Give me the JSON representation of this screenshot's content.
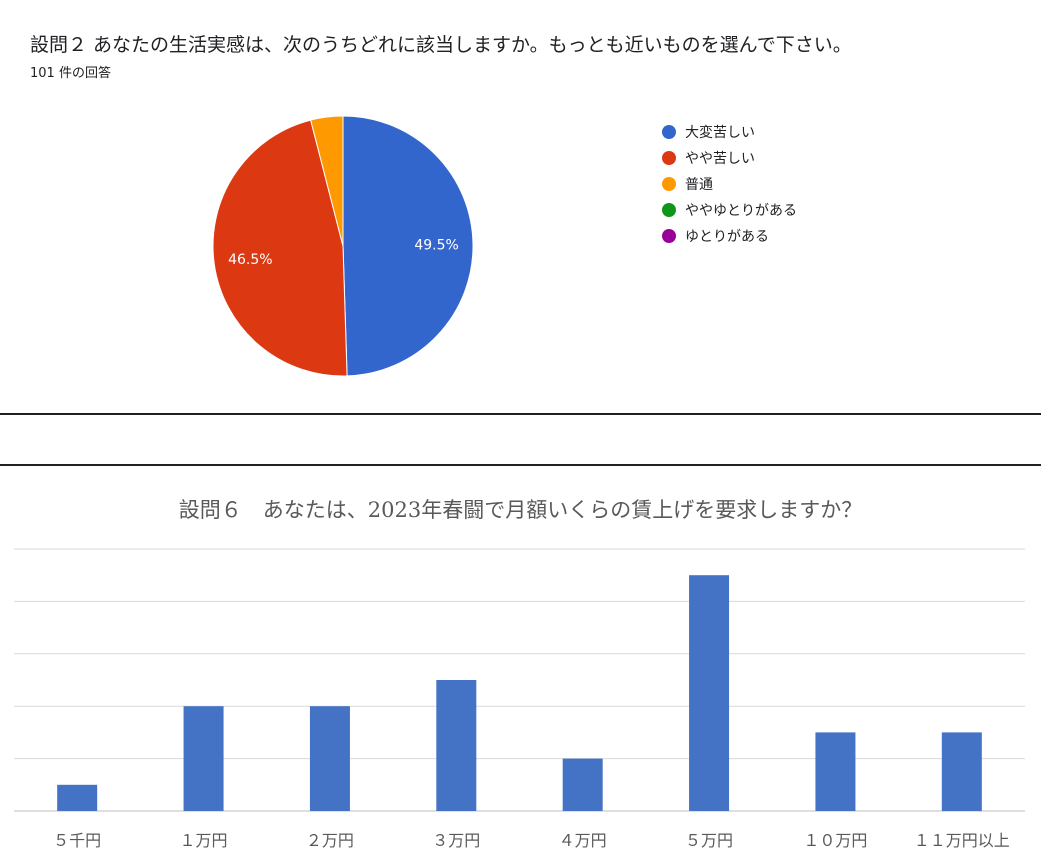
{
  "chart_data": [
    {
      "type": "pie",
      "title": "設問２ あなたの生活実感は、次のうちどれに該当しますか。もっとも近いものを選んで下さい。",
      "subtitle": "101 件の回答",
      "legend_position": "right",
      "series": [
        {
          "name": "大変苦しい",
          "percent": 49.5,
          "color": "#3366cc",
          "label": "49.5%"
        },
        {
          "name": "やや苦しい",
          "percent": 46.5,
          "color": "#dc3912",
          "label": "46.5%"
        },
        {
          "name": "普通",
          "percent": 4.0,
          "color": "#ff9900",
          "label": ""
        },
        {
          "name": "ややゆとりがある",
          "percent": 0,
          "color": "#109618",
          "label": ""
        },
        {
          "name": "ゆとりがある",
          "percent": 0,
          "color": "#990099",
          "label": ""
        }
      ]
    },
    {
      "type": "bar",
      "title": "設問６　あなたは、2023年春闘で月額いくらの賃上げを要求しますか？",
      "categories": [
        "５千円",
        "１万円",
        "２万円",
        "３万円",
        "４万円",
        "５万円",
        "１０万円",
        "１１万円以上"
      ],
      "values": [
        1,
        4,
        4,
        5,
        2,
        9,
        3,
        3
      ],
      "ylim": [
        0,
        10
      ],
      "grid": true,
      "color": "#4472c4"
    }
  ]
}
